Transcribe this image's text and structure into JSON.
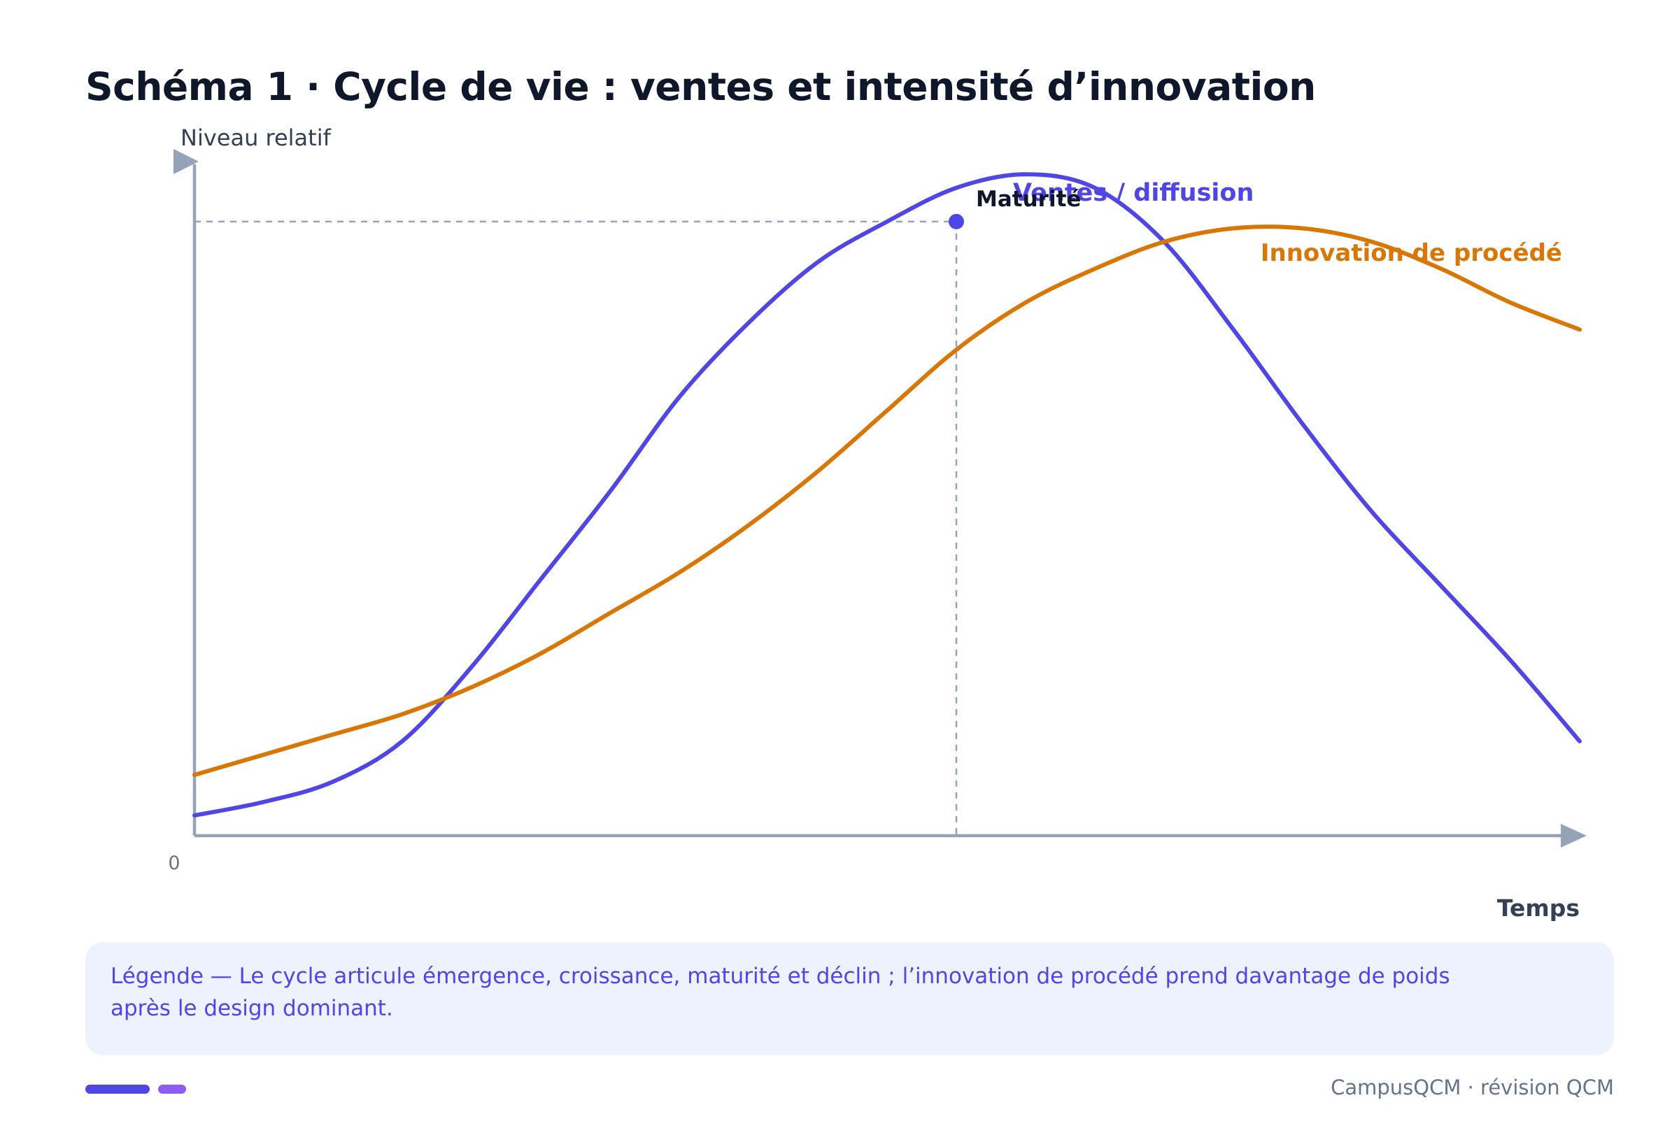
{
  "title": "Schéma 1 · Cycle de vie : ventes et intensité d’innovation",
  "chart_data": {
    "type": "line",
    "ylabel": "Niveau relatif",
    "xlabel": "Temps",
    "y_origin_label": "0",
    "grid": false,
    "x": [
      0,
      1,
      2,
      3,
      4,
      5,
      6,
      7,
      8,
      9,
      10,
      11,
      12,
      13,
      14,
      15,
      16,
      17,
      18,
      19,
      20
    ],
    "ylim": [
      0,
      100
    ],
    "series": [
      {
        "name": "Ventes / diffusion",
        "color": "#4f46e5",
        "values": [
          3,
          5,
          8,
          14,
          25,
          38,
          51,
          65,
          76,
          85,
          91,
          96,
          98,
          96,
          88,
          75,
          61,
          48,
          37,
          26,
          14
        ]
      },
      {
        "name": "Innovation de procédé",
        "color": "#d97706",
        "values": [
          9,
          12,
          15,
          18,
          22,
          27,
          33,
          39,
          46,
          54,
          63,
          72,
          79,
          84,
          88,
          90,
          90,
          88,
          84,
          79,
          75
        ]
      }
    ],
    "annotation": {
      "label": "Maturité",
      "series": "Ventes / diffusion",
      "x": 11,
      "y": 91
    }
  },
  "legend": {
    "text": "Légende — Le cycle articule émergence, croissance, maturité et déclin ; l’innovation de procédé prend davantage de poids après le design dominant."
  },
  "footer": {
    "text": "CampusQCM · révision QCM"
  },
  "colors": {
    "axis": "#94a3b8",
    "title": "#0f172a",
    "legend_bg": "#eef2ff",
    "accent_primary": "#4f46e5",
    "accent_secondary": "#8b5cf6",
    "accent_orange": "#d97706"
  }
}
